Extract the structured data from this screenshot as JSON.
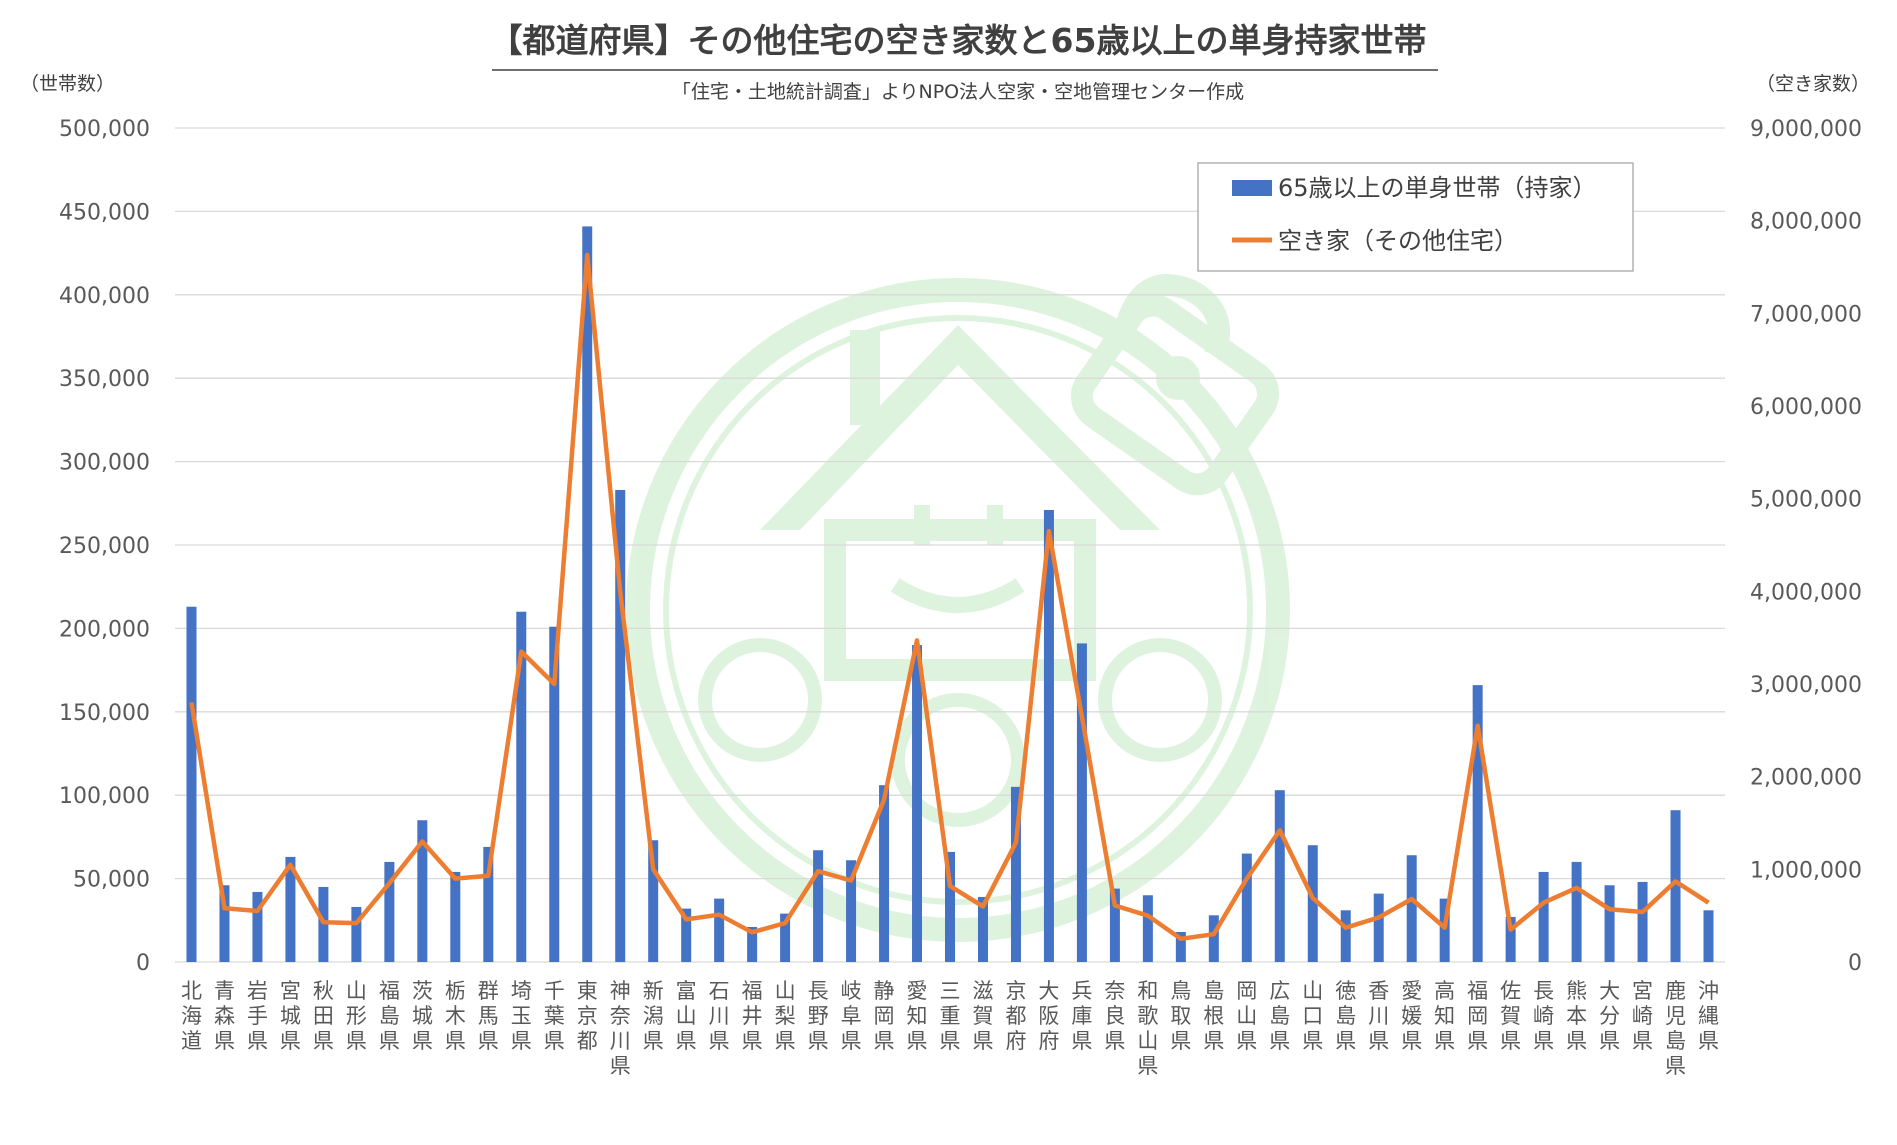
{
  "chart_data": {
    "type": "bar",
    "title": "【都道府県】その他住宅の空き家数と65歳以上の単身持家世帯",
    "subtitle": "「住宅・土地統計調査」よりNPO法人空家・空地管理センター作成",
    "ylabel_left": "（世帯数）",
    "ylabel_right": "（空き家数）",
    "ylim_left": [
      0,
      500000
    ],
    "ylim_right": [
      0,
      9000000
    ],
    "yticks_left": [
      "0",
      "50,000",
      "100,000",
      "150,000",
      "200,000",
      "250,000",
      "300,000",
      "350,000",
      "400,000",
      "450,000",
      "500,000"
    ],
    "yticks_right": [
      "0",
      "1,000,000",
      "2,000,000",
      "3,000,000",
      "4,000,000",
      "5,000,000",
      "6,000,000",
      "7,000,000",
      "8,000,000",
      "9,000,000"
    ],
    "grid": true,
    "legend_position": "top-right",
    "categories": [
      "北海道",
      "青森県",
      "岩手県",
      "宮城県",
      "秋田県",
      "山形県",
      "福島県",
      "茨城県",
      "栃木県",
      "群馬県",
      "埼玉県",
      "千葉県",
      "東京都",
      "神奈川県",
      "新潟県",
      "富山県",
      "石川県",
      "福井県",
      "山梨県",
      "長野県",
      "岐阜県",
      "静岡県",
      "愛知県",
      "三重県",
      "滋賀県",
      "京都府",
      "大阪府",
      "兵庫県",
      "奈良県",
      "和歌山県",
      "鳥取県",
      "島根県",
      "岡山県",
      "広島県",
      "山口県",
      "徳島県",
      "香川県",
      "愛媛県",
      "高知県",
      "福岡県",
      "佐賀県",
      "長崎県",
      "熊本県",
      "大分県",
      "宮崎県",
      "鹿児島県",
      "沖縄県"
    ],
    "series": [
      {
        "name": "65歳以上の単身世帯（持家）",
        "type": "bar",
        "axis": "left",
        "color": "#4472c4",
        "values": [
          213000,
          46000,
          42000,
          63000,
          45000,
          33000,
          60000,
          85000,
          54000,
          69000,
          210000,
          201000,
          441000,
          283000,
          73000,
          32000,
          38000,
          21000,
          29000,
          67000,
          61000,
          106000,
          190000,
          66000,
          39000,
          105000,
          271000,
          191000,
          44000,
          40000,
          18000,
          28000,
          65000,
          103000,
          70000,
          31000,
          41000,
          64000,
          38000,
          166000,
          27000,
          54000,
          60000,
          46000,
          48000,
          91000,
          31000
        ]
      },
      {
        "name": "空き家（その他住宅）",
        "type": "line",
        "axis": "right",
        "color": "#ed7d31",
        "values": [
          2800000,
          580000,
          550000,
          1050000,
          430000,
          420000,
          850000,
          1300000,
          900000,
          930000,
          3350000,
          3000000,
          7630000,
          4000000,
          1000000,
          460000,
          510000,
          320000,
          420000,
          980000,
          880000,
          1750000,
          3470000,
          820000,
          600000,
          1290000,
          4650000,
          2650000,
          610000,
          500000,
          250000,
          300000,
          900000,
          1420000,
          690000,
          370000,
          480000,
          680000,
          370000,
          2550000,
          350000,
          640000,
          800000,
          570000,
          540000,
          870000,
          640000
        ]
      }
    ]
  }
}
